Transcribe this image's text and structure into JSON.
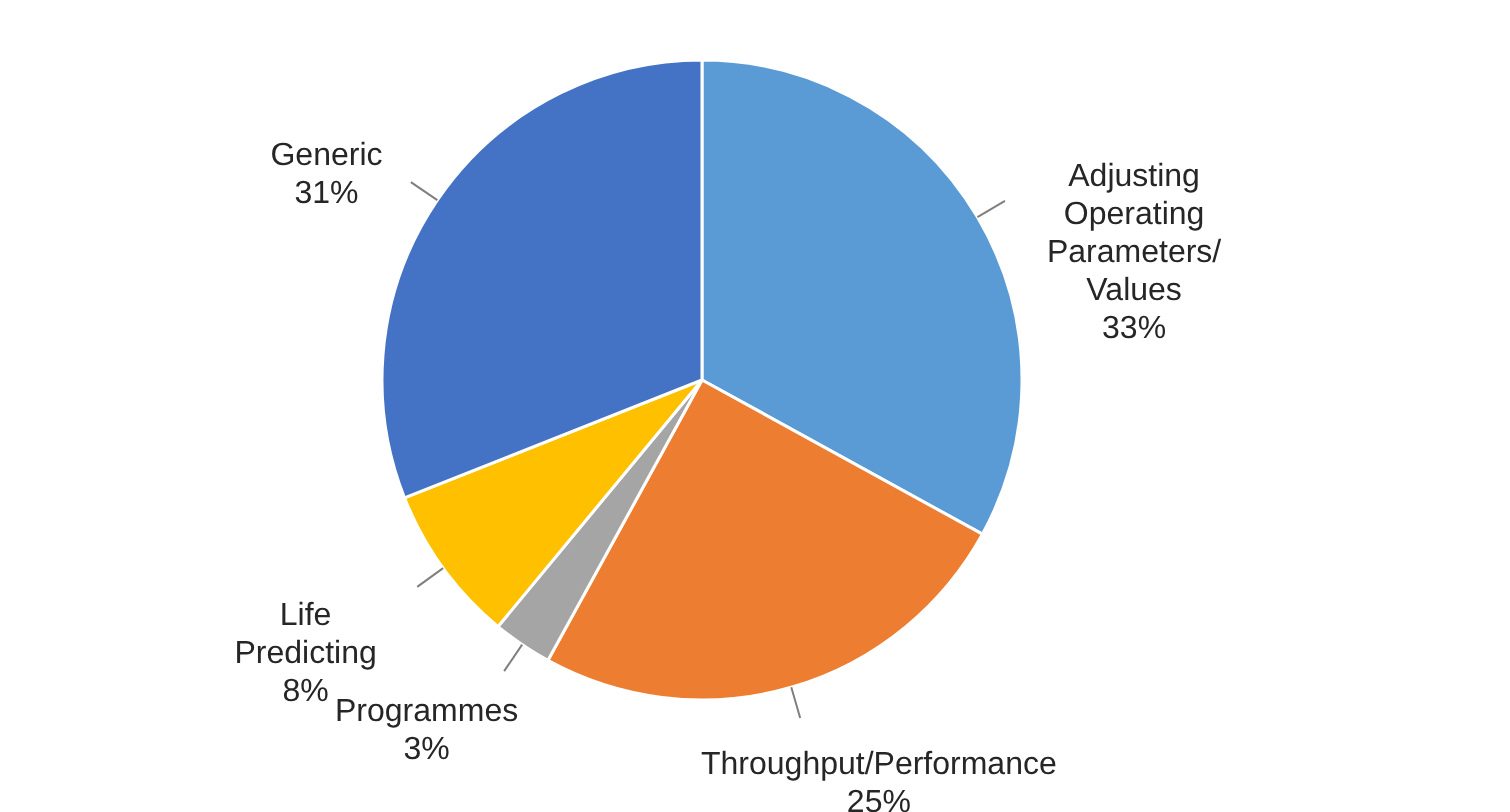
{
  "chart_data": {
    "type": "pie",
    "categories": [
      "Adjusting Operating Parameters/ Values",
      "Throughput/Performance",
      "Programmes",
      "Life Predicting",
      "Generic"
    ],
    "values": [
      33,
      25,
      3,
      8,
      31
    ],
    "value_labels": [
      "33%",
      "25%",
      "3%",
      "8%",
      "31%"
    ],
    "colors": [
      "#5b9bd5",
      "#ed7d31",
      "#a5a5a5",
      "#ffc000",
      "#4472c4"
    ]
  }
}
